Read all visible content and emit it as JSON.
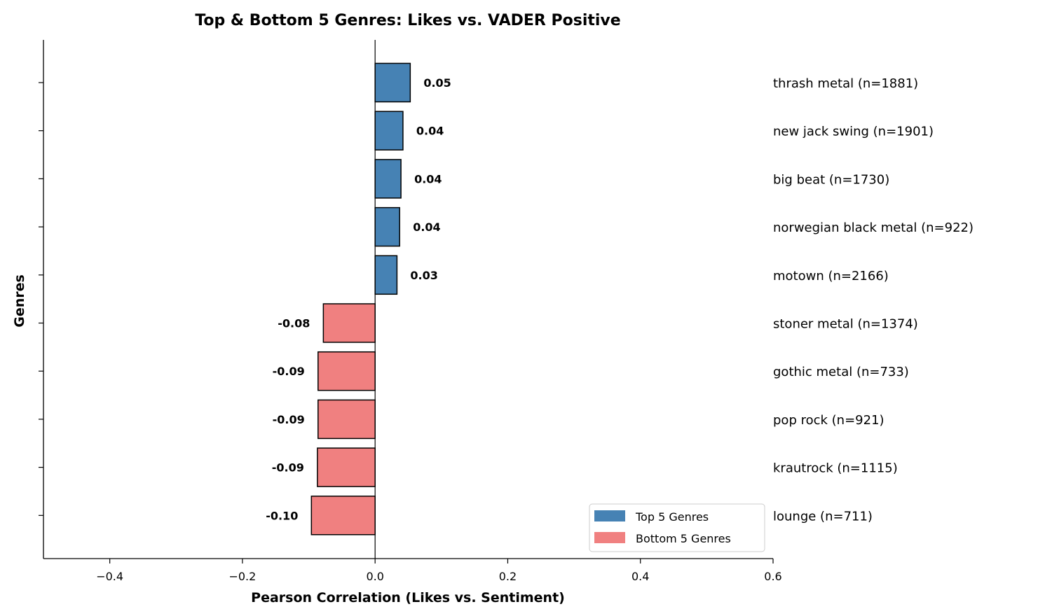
{
  "chart_data": {
    "type": "bar",
    "orientation": "horizontal",
    "title": "Top & Bottom 5 Genres: Likes vs. VADER Positive",
    "xlabel": "Pearson Correlation (Likes vs. Sentiment)",
    "ylabel": "Genres",
    "xlim": [
      -0.5,
      0.6
    ],
    "xticks": [
      -0.4,
      -0.2,
      0.0,
      0.2,
      0.4,
      0.6
    ],
    "xtick_labels": [
      "−0.4",
      "−0.2",
      "0.0",
      "0.2",
      "0.4",
      "0.6"
    ],
    "grid": false,
    "legend_position": "bottom-right",
    "colors": {
      "top": "#4682b4",
      "bottom": "#f08080",
      "edge": "#000000"
    },
    "series": [
      {
        "name": "Top 5 Genres",
        "group": "top"
      },
      {
        "name": "Bottom 5 Genres",
        "group": "bottom"
      }
    ],
    "bars": [
      {
        "genre": "thrash metal (n=1881)",
        "value": 0.053,
        "label": "0.05",
        "group": "top"
      },
      {
        "genre": "new jack swing (n=1901)",
        "value": 0.042,
        "label": "0.04",
        "group": "top"
      },
      {
        "genre": "big beat (n=1730)",
        "value": 0.039,
        "label": "0.04",
        "group": "top"
      },
      {
        "genre": "norwegian black metal (n=922)",
        "value": 0.037,
        "label": "0.04",
        "group": "top"
      },
      {
        "genre": "motown (n=2166)",
        "value": 0.033,
        "label": "0.03",
        "group": "top"
      },
      {
        "genre": "stoner metal (n=1374)",
        "value": -0.078,
        "label": "-0.08",
        "group": "bottom"
      },
      {
        "genre": "gothic metal (n=733)",
        "value": -0.086,
        "label": "-0.09",
        "group": "bottom"
      },
      {
        "genre": "pop rock (n=921)",
        "value": -0.086,
        "label": "-0.09",
        "group": "bottom"
      },
      {
        "genre": "krautrock (n=1115)",
        "value": -0.087,
        "label": "-0.09",
        "group": "bottom"
      },
      {
        "genre": "lounge (n=711)",
        "value": -0.096,
        "label": "-0.10",
        "group": "bottom"
      }
    ]
  }
}
